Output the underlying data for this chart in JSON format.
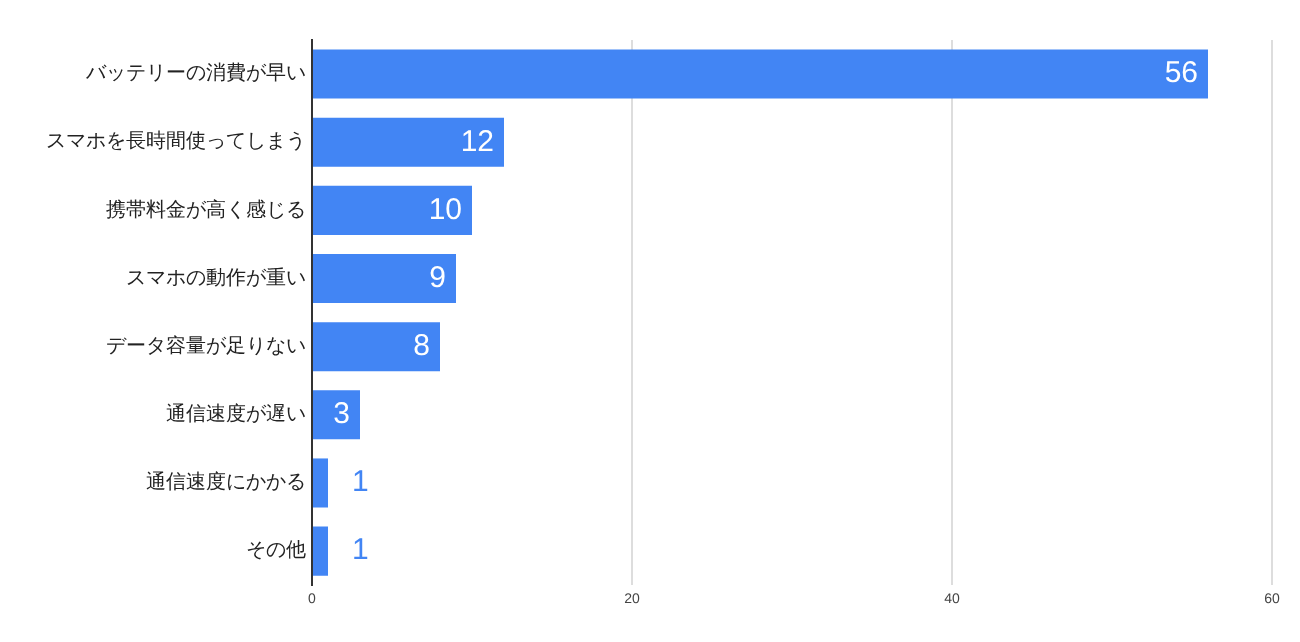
{
  "chart_data": {
    "type": "bar",
    "orientation": "horizontal",
    "categories": [
      "バッテリーの消費が早い",
      "スマホを長時間使ってしまう",
      "携帯料金が高く感じる",
      "スマホの動作が重い",
      "データ容量が足りない",
      "通信速度が遅い",
      "通信速度にかかる",
      "その他"
    ],
    "values": [
      56,
      12,
      10,
      9,
      8,
      3,
      1,
      1
    ],
    "color": "#4285f4",
    "xlim": [
      0,
      60
    ],
    "xticks": [
      0,
      20,
      40,
      60
    ],
    "grid": "x",
    "data_labels": true
  }
}
